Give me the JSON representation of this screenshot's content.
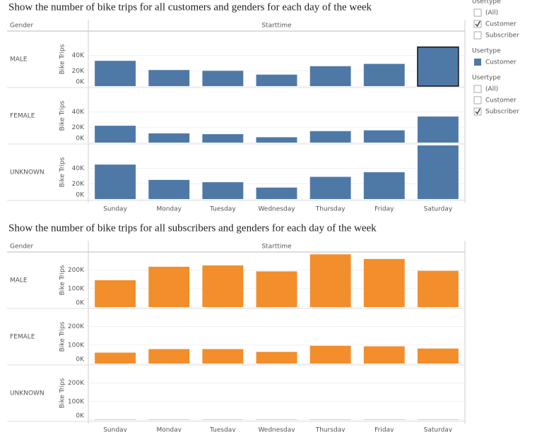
{
  "chart_data": [
    {
      "type": "bar",
      "title": "Show the number of bike trips for all customers and genders for each day of the week",
      "row_header": "Gender",
      "column_header": "Starttime",
      "axis_label": "Bike Trips",
      "categories": [
        "Sunday",
        "Monday",
        "Tuesday",
        "Wednesday",
        "Thursday",
        "Friday",
        "Saturday"
      ],
      "color": "#4e79a7",
      "ylim": [
        0,
        70000
      ],
      "yticks": [
        {
          "value": 0,
          "label": "0K"
        },
        {
          "value": 20000,
          "label": "20K"
        },
        {
          "value": 40000,
          "label": "40K"
        }
      ],
      "grid": true,
      "highlight": {
        "panel": 0,
        "category": 6
      },
      "panels": [
        {
          "name": "MALE",
          "values": [
            33000,
            21000,
            20000,
            15000,
            26000,
            29000,
            51000
          ]
        },
        {
          "name": "FEMALE",
          "values": [
            22000,
            12000,
            11000,
            7000,
            15000,
            16000,
            34000
          ]
        },
        {
          "name": "UNKNOWN",
          "values": [
            45000,
            25000,
            22000,
            15000,
            29000,
            35000,
            70000
          ]
        }
      ]
    },
    {
      "type": "bar",
      "title": "Show the number of bike trips for all subscribers and genders for each day of the week",
      "row_header": "Gender",
      "column_header": "Starttime",
      "axis_label": "Bike Trips",
      "categories": [
        "Sunday",
        "Monday",
        "Tuesday",
        "Wednesday",
        "Thursday",
        "Friday",
        "Saturday"
      ],
      "color": "#f28e2b",
      "ylim": [
        0,
        290000
      ],
      "yticks": [
        {
          "value": 0,
          "label": "0K"
        },
        {
          "value": 100000,
          "label": "100K"
        },
        {
          "value": 200000,
          "label": "200K"
        }
      ],
      "grid": true,
      "panels": [
        {
          "name": "MALE",
          "values": [
            145000,
            218000,
            225000,
            193000,
            285000,
            260000,
            196000
          ]
        },
        {
          "name": "FEMALE",
          "values": [
            59000,
            78000,
            78000,
            63000,
            96000,
            93000,
            81000
          ]
        },
        {
          "name": "UNKNOWN",
          "values": [
            2000,
            2000,
            2000,
            2000,
            2000,
            2000,
            2000
          ]
        }
      ]
    }
  ],
  "filters": [
    {
      "title": "Usertype",
      "items": [
        {
          "label": "(All)",
          "checked": false
        },
        {
          "label": "Customer",
          "checked": true
        },
        {
          "label": "Subscriber",
          "checked": false
        }
      ]
    },
    {
      "title": "Usertype",
      "items": [
        {
          "label": "Customer",
          "color": "#4e79a7"
        }
      ]
    },
    {
      "title": "Usertype",
      "items": [
        {
          "label": "(All)",
          "checked": false
        },
        {
          "label": "Customer",
          "checked": false
        },
        {
          "label": "Subscriber",
          "checked": true
        }
      ]
    }
  ]
}
